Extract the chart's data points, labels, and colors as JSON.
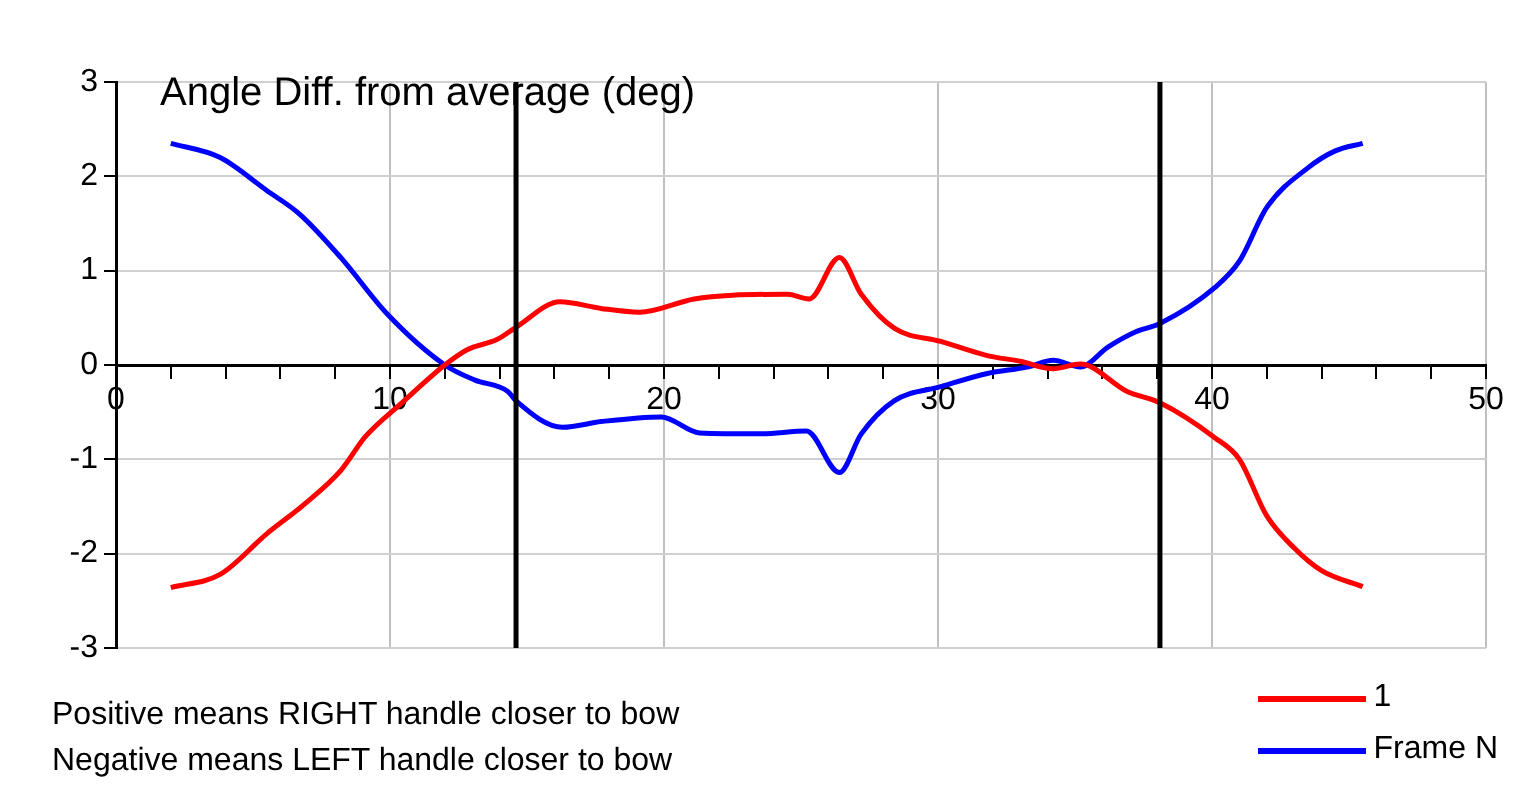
{
  "chart_data": {
    "type": "line",
    "title": "Angle Diff. from average (deg)",
    "xlim": [
      0,
      50
    ],
    "xticks": [
      0,
      {
        "value": 2,
        "label": null
      },
      {
        "value": 4,
        "label": null
      },
      {
        "value": 6,
        "label": null
      },
      {
        "value": 8,
        "label": null
      },
      10,
      {
        "value": 12,
        "label": null
      },
      {
        "value": 14,
        "label": null
      },
      {
        "value": 16,
        "label": null
      },
      {
        "value": 18,
        "label": null
      },
      20,
      {
        "value": 22,
        "label": null
      },
      {
        "value": 24,
        "label": null
      },
      {
        "value": 26,
        "label": null
      },
      {
        "value": 28,
        "label": null
      },
      30,
      {
        "value": 32,
        "label": null
      },
      {
        "value": 34,
        "label": null
      },
      {
        "value": 36,
        "label": null
      },
      {
        "value": 38,
        "label": null
      },
      40,
      {
        "value": 42,
        "label": null
      },
      {
        "value": 44,
        "label": null
      },
      {
        "value": 46,
        "label": null
      },
      {
        "value": 48,
        "label": null
      },
      50
    ],
    "ylim": [
      -3,
      3
    ],
    "yticks": [
      -3,
      -2,
      -1,
      0,
      1,
      2,
      3
    ],
    "grid": true,
    "legend": "bottom right",
    "marker": "none",
    "line_style": "solid",
    "series": [
      {
        "name": "1",
        "color": "#ff0000",
        "x": [
          2,
          3.8,
          5.5,
          6.9,
          8.2,
          9.1,
          10.4,
          12,
          12.8,
          13.9,
          14.6,
          16.2,
          17.7,
          19.1,
          21.1,
          22.5,
          24.5,
          25.3,
          26.4,
          27.2,
          28.4,
          30.1,
          31.8,
          33,
          34.2,
          35.2,
          36.9,
          38.1,
          40.1,
          41,
          42,
          43,
          44,
          45.5
        ],
        "values": [
          -2.36,
          -2.22,
          -1.79,
          -1.47,
          -1.12,
          -0.76,
          -0.41,
          0,
          0.16,
          0.27,
          0.4,
          0.67,
          0.6,
          0.56,
          0.7,
          0.74,
          0.75,
          0.7,
          1.14,
          0.75,
          0.39,
          0.25,
          0.1,
          0.04,
          -0.04,
          0.01,
          -0.28,
          -0.4,
          -0.77,
          -1.0,
          -1.6,
          -1.94,
          -2.18,
          -2.35
        ]
      },
      {
        "name": "Frame N",
        "color": "#0000ff",
        "x": [
          2,
          3.8,
          5.5,
          6.7,
          8.2,
          9.9,
          12,
          13.1,
          14.3,
          14.6,
          16.3,
          17.7,
          19.9,
          21.3,
          23.5,
          25.2,
          26.4,
          27.2,
          28.4,
          30.1,
          31.8,
          33.3,
          34.2,
          35.2,
          36.2,
          37.2,
          38.1,
          40.1,
          41,
          42,
          43.5,
          44.5,
          45.5
        ],
        "values": [
          2.35,
          2.2,
          1.85,
          1.6,
          1.14,
          0.54,
          0,
          -0.16,
          -0.28,
          -0.38,
          -0.66,
          -0.6,
          -0.55,
          -0.72,
          -0.73,
          -0.7,
          -1.14,
          -0.73,
          -0.38,
          -0.23,
          -0.09,
          -0.02,
          0.05,
          -0.02,
          0.19,
          0.35,
          0.44,
          0.82,
          1.1,
          1.67,
          2.09,
          2.27,
          2.35
        ]
      }
    ],
    "ref_lines": [
      {
        "axis": "x",
        "value": 14.6,
        "color": "#000000"
      },
      {
        "axis": "x",
        "value": 38.1,
        "color": "#000000"
      }
    ],
    "annotations": [
      "Positive means RIGHT handle closer to bow",
      "Negative means LEFT handle closer to bow"
    ]
  }
}
